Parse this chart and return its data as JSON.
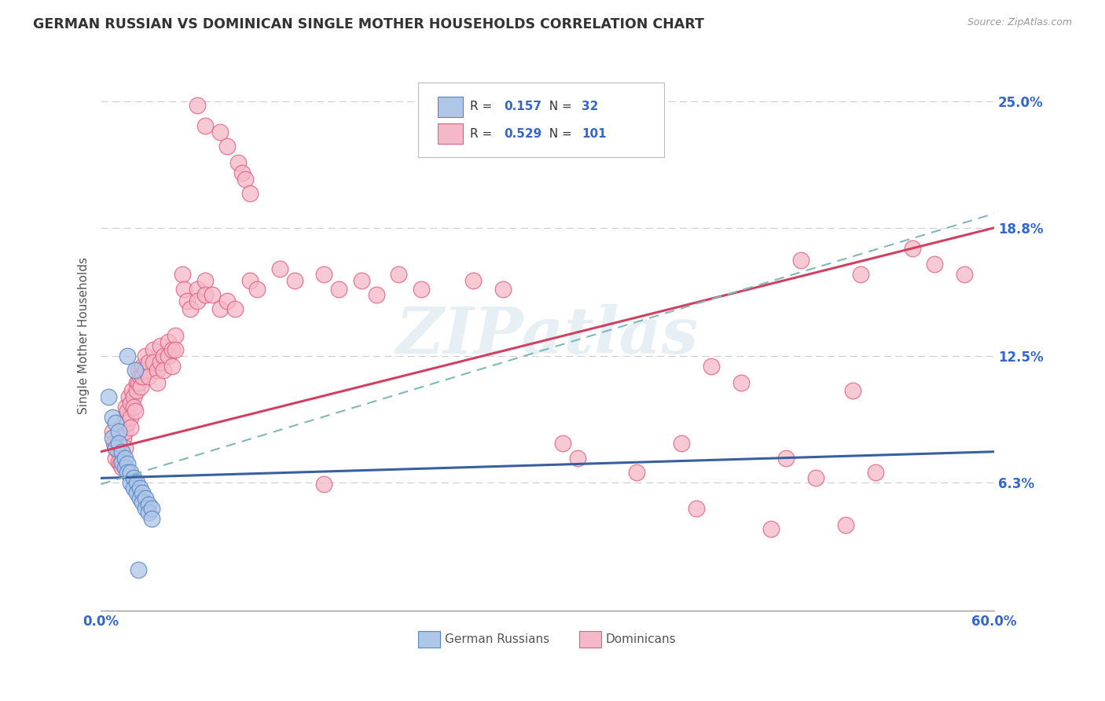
{
  "title": "GERMAN RUSSIAN VS DOMINICAN SINGLE MOTHER HOUSEHOLDS CORRELATION CHART",
  "source": "Source: ZipAtlas.com",
  "ylabel": "Single Mother Households",
  "xlim": [
    0.0,
    0.6
  ],
  "ylim": [
    0.0,
    0.27
  ],
  "ytick_labels": [
    "6.3%",
    "12.5%",
    "18.8%",
    "25.0%"
  ],
  "ytick_vals": [
    0.063,
    0.125,
    0.188,
    0.25
  ],
  "watermark": "ZIPatlas",
  "legend_r_blue": "0.157",
  "legend_n_blue": "32",
  "legend_r_pink": "0.529",
  "legend_n_pink": "101",
  "blue_fill": "#aec6e8",
  "blue_edge": "#5585c5",
  "pink_fill": "#f5b8c8",
  "pink_edge": "#e06080",
  "blue_line_color": "#3a5fa0",
  "pink_line_color": "#d04060",
  "dashed_line_color": "#80b8b8",
  "blue_scatter": [
    [
      0.008,
      0.095
    ],
    [
      0.008,
      0.085
    ],
    [
      0.01,
      0.092
    ],
    [
      0.01,
      0.08
    ],
    [
      0.012,
      0.088
    ],
    [
      0.012,
      0.082
    ],
    [
      0.014,
      0.078
    ],
    [
      0.014,
      0.073
    ],
    [
      0.016,
      0.075
    ],
    [
      0.016,
      0.07
    ],
    [
      0.018,
      0.072
    ],
    [
      0.018,
      0.068
    ],
    [
      0.02,
      0.068
    ],
    [
      0.02,
      0.063
    ],
    [
      0.022,
      0.065
    ],
    [
      0.022,
      0.06
    ],
    [
      0.024,
      0.063
    ],
    [
      0.024,
      0.058
    ],
    [
      0.026,
      0.06
    ],
    [
      0.026,
      0.055
    ],
    [
      0.028,
      0.058
    ],
    [
      0.028,
      0.053
    ],
    [
      0.03,
      0.055
    ],
    [
      0.03,
      0.05
    ],
    [
      0.032,
      0.052
    ],
    [
      0.032,
      0.048
    ],
    [
      0.034,
      0.05
    ],
    [
      0.034,
      0.045
    ],
    [
      0.005,
      0.105
    ],
    [
      0.018,
      0.125
    ],
    [
      0.023,
      0.118
    ],
    [
      0.025,
      0.02
    ]
  ],
  "pink_scatter": [
    [
      0.008,
      0.088
    ],
    [
      0.009,
      0.082
    ],
    [
      0.01,
      0.08
    ],
    [
      0.01,
      0.075
    ],
    [
      0.012,
      0.078
    ],
    [
      0.012,
      0.073
    ],
    [
      0.013,
      0.072
    ],
    [
      0.014,
      0.07
    ],
    [
      0.015,
      0.092
    ],
    [
      0.015,
      0.085
    ],
    [
      0.016,
      0.088
    ],
    [
      0.016,
      0.08
    ],
    [
      0.017,
      0.1
    ],
    [
      0.017,
      0.095
    ],
    [
      0.018,
      0.098
    ],
    [
      0.018,
      0.092
    ],
    [
      0.019,
      0.105
    ],
    [
      0.02,
      0.102
    ],
    [
      0.02,
      0.095
    ],
    [
      0.02,
      0.09
    ],
    [
      0.021,
      0.108
    ],
    [
      0.022,
      0.105
    ],
    [
      0.022,
      0.1
    ],
    [
      0.023,
      0.098
    ],
    [
      0.024,
      0.112
    ],
    [
      0.024,
      0.108
    ],
    [
      0.025,
      0.118
    ],
    [
      0.025,
      0.112
    ],
    [
      0.026,
      0.115
    ],
    [
      0.027,
      0.11
    ],
    [
      0.028,
      0.12
    ],
    [
      0.028,
      0.115
    ],
    [
      0.03,
      0.125
    ],
    [
      0.03,
      0.118
    ],
    [
      0.032,
      0.122
    ],
    [
      0.032,
      0.115
    ],
    [
      0.035,
      0.128
    ],
    [
      0.035,
      0.122
    ],
    [
      0.038,
      0.118
    ],
    [
      0.038,
      0.112
    ],
    [
      0.04,
      0.13
    ],
    [
      0.04,
      0.122
    ],
    [
      0.042,
      0.125
    ],
    [
      0.042,
      0.118
    ],
    [
      0.045,
      0.132
    ],
    [
      0.045,
      0.125
    ],
    [
      0.048,
      0.128
    ],
    [
      0.048,
      0.12
    ],
    [
      0.05,
      0.135
    ],
    [
      0.05,
      0.128
    ],
    [
      0.055,
      0.165
    ],
    [
      0.056,
      0.158
    ],
    [
      0.058,
      0.152
    ],
    [
      0.06,
      0.148
    ],
    [
      0.065,
      0.158
    ],
    [
      0.065,
      0.152
    ],
    [
      0.07,
      0.162
    ],
    [
      0.07,
      0.155
    ],
    [
      0.075,
      0.155
    ],
    [
      0.08,
      0.148
    ],
    [
      0.085,
      0.152
    ],
    [
      0.09,
      0.148
    ],
    [
      0.1,
      0.162
    ],
    [
      0.105,
      0.158
    ],
    [
      0.12,
      0.168
    ],
    [
      0.13,
      0.162
    ],
    [
      0.15,
      0.165
    ],
    [
      0.16,
      0.158
    ],
    [
      0.175,
      0.162
    ],
    [
      0.185,
      0.155
    ],
    [
      0.2,
      0.165
    ],
    [
      0.215,
      0.158
    ],
    [
      0.25,
      0.162
    ],
    [
      0.27,
      0.158
    ],
    [
      0.31,
      0.082
    ],
    [
      0.32,
      0.075
    ],
    [
      0.36,
      0.068
    ],
    [
      0.39,
      0.082
    ],
    [
      0.41,
      0.12
    ],
    [
      0.43,
      0.112
    ],
    [
      0.46,
      0.075
    ],
    [
      0.48,
      0.065
    ],
    [
      0.505,
      0.108
    ],
    [
      0.52,
      0.068
    ],
    [
      0.47,
      0.172
    ],
    [
      0.51,
      0.165
    ],
    [
      0.545,
      0.178
    ],
    [
      0.56,
      0.17
    ],
    [
      0.58,
      0.165
    ],
    [
      0.065,
      0.248
    ],
    [
      0.07,
      0.238
    ],
    [
      0.08,
      0.235
    ],
    [
      0.085,
      0.228
    ],
    [
      0.092,
      0.22
    ],
    [
      0.095,
      0.215
    ],
    [
      0.097,
      0.212
    ],
    [
      0.1,
      0.205
    ],
    [
      0.15,
      0.062
    ],
    [
      0.4,
      0.05
    ],
    [
      0.45,
      0.04
    ],
    [
      0.5,
      0.042
    ]
  ],
  "blue_trend": [
    0.0,
    0.6,
    0.065,
    0.078
  ],
  "pink_trend": [
    0.0,
    0.6,
    0.078,
    0.188
  ],
  "dash_trend": [
    0.0,
    0.6,
    0.062,
    0.195
  ]
}
